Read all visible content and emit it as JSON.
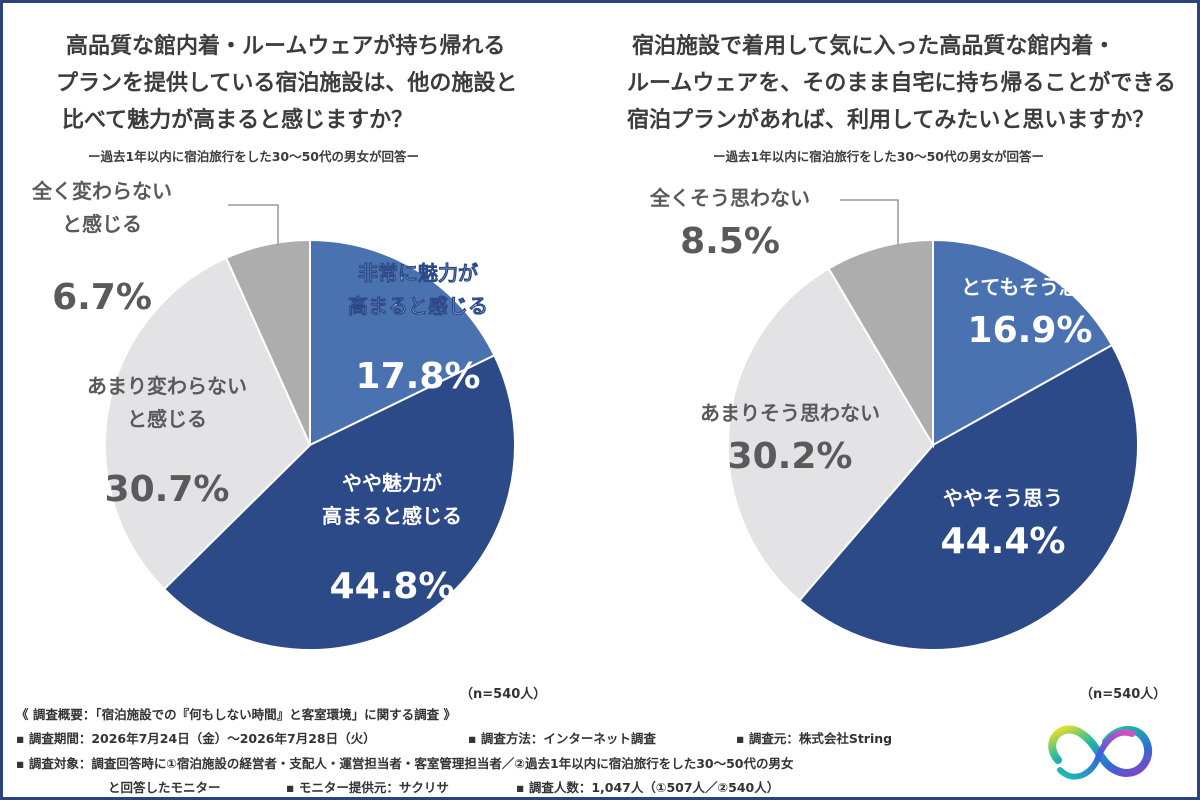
{
  "charts": {
    "left": {
      "title_lines": [
        "高品質な館内着・ルームウェアが持ち帰れる",
        "プランを提供している宿泊施設は、他の施設と",
        "比べて魅力が高まると感じますか？"
      ],
      "subtitle": "ー過去1年以内に宿泊旅行をした30〜50代の男女が回答ー",
      "n_label": "（n=540人）"
    },
    "right": {
      "title_lines": [
        "宿泊施設で着用して気に入った高品質な館内着・",
        "ルームウェアを、そのまま自宅に持ち帰ることができる",
        "宿泊プランがあれば、利用してみたいと思いますか？"
      ],
      "subtitle": "ー過去1年以内に宿泊旅行をした30〜50代の男女が回答ー",
      "n_label": "（n=540人）"
    }
  },
  "chart_data": [
    {
      "type": "pie",
      "slices": [
        {
          "label_lines": [
            "非常に魅力が",
            "高まると感じる"
          ],
          "value": 17.8,
          "pct_label": "17.8%",
          "color": "#4a72b0"
        },
        {
          "label_lines": [
            "やや魅力が",
            "高まると感じる"
          ],
          "value": 44.8,
          "pct_label": "44.8%",
          "color": "#2b4a87"
        },
        {
          "label_lines": [
            "あまり変わらない",
            "と感じる"
          ],
          "value": 30.7,
          "pct_label": "30.7%",
          "color": "#e3e3e6"
        },
        {
          "label_lines": [
            "全く変わらない",
            "と感じる"
          ],
          "value": 6.7,
          "pct_label": "6.7%",
          "color": "#adadad"
        }
      ]
    },
    {
      "type": "pie",
      "slices": [
        {
          "label_lines": [
            "とてもそう思う"
          ],
          "value": 16.9,
          "pct_label": "16.9%",
          "color": "#4a72b0"
        },
        {
          "label_lines": [
            "ややそう思う"
          ],
          "value": 44.4,
          "pct_label": "44.4%",
          "color": "#2b4a87"
        },
        {
          "label_lines": [
            "あまりそう思わない"
          ],
          "value": 30.2,
          "pct_label": "30.2%",
          "color": "#e3e3e6"
        },
        {
          "label_lines": [
            "全くそう思わない"
          ],
          "value": 8.5,
          "pct_label": "8.5%",
          "color": "#adadad"
        }
      ]
    }
  ],
  "survey": {
    "summary": "《 調査概要：「宿泊施設での『何もしない時間』と客室環境」に関する調査 》",
    "period": "▪ 調査期間：2026年7月24日（金）〜2026年7月28日（火）",
    "method": "▪ 調査方法：インターネット調査",
    "source": "▪ 調査元：株式会社String",
    "target": "▪ 調査対象：調査回答時に①宿泊施設の経営者・支配人・運営担当者・客室管理担当者／②過去1年以内に宿泊旅行をした30〜50代の男女",
    "target_cont": "と回答したモニター",
    "monitor": "▪ モニター提供元：サクリサ",
    "count": "▪ 調査人数：1,047人（①507人／②540人）"
  },
  "logo": {
    "icon": "infinity-logo-icon"
  }
}
